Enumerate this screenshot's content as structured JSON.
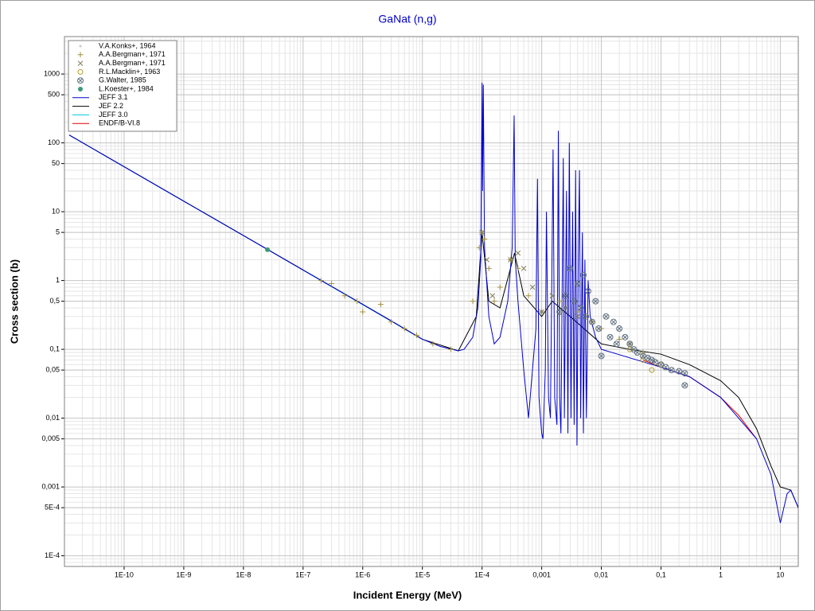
{
  "chart_data": {
    "type": "line",
    "title": "GaNat (n,g)",
    "x_label": "Incident Energy (MeV)",
    "y_label": "Cross section (b)",
    "xscale": "log",
    "yscale": "log",
    "grid": true,
    "minor_grid": true,
    "legend": "upper left",
    "xlim": [
      1e-11,
      20
    ],
    "ylim": [
      7e-05,
      3500
    ],
    "xticks": [
      {
        "value": 1e-10,
        "label": "1E-10"
      },
      {
        "value": 1e-09,
        "label": "1E-9"
      },
      {
        "value": 1e-08,
        "label": "1E-8"
      },
      {
        "value": 1e-07,
        "label": "1E-7"
      },
      {
        "value": 1e-06,
        "label": "1E-6"
      },
      {
        "value": 1e-05,
        "label": "1E-5"
      },
      {
        "value": 0.0001,
        "label": "1E-4"
      },
      {
        "value": 0.001,
        "label": "0,001"
      },
      {
        "value": 0.01,
        "label": "0,01"
      },
      {
        "value": 0.1,
        "label": "0,1"
      },
      1,
      10
    ],
    "yticks": [
      {
        "value": 0.0001,
        "label": "1E-4"
      },
      {
        "value": 0.0005,
        "label": "5E-4"
      },
      {
        "value": 0.001,
        "label": "0,001"
      },
      {
        "value": 0.005,
        "label": "0,005"
      },
      {
        "value": 0.01,
        "label": "0,01"
      },
      {
        "value": 0.05,
        "label": "0,05"
      },
      {
        "value": 0.1,
        "label": "0,1"
      },
      {
        "value": 0.5,
        "label": "0,5"
      },
      1,
      5,
      10,
      50,
      100,
      500,
      1000
    ],
    "series": [
      {
        "name": "V.A.Konks+, 1964",
        "kind": "scatter",
        "marker": "dot",
        "color": "#c8c8c8",
        "x": [
          0.02,
          0.03,
          0.05
        ],
        "values": [
          0.15,
          0.12,
          0.09
        ]
      },
      {
        "name": "A.A.Bergman+, 1971",
        "kind": "scatter",
        "marker": "plus",
        "color": "#a09040",
        "x": [
          2e-07,
          3e-07,
          5e-07,
          8e-07,
          1e-06,
          2e-06,
          3e-06,
          5e-06,
          8e-06,
          1.5e-05,
          3e-05,
          7e-05,
          9e-05,
          0.0001,
          0.00011,
          0.00013,
          0.00016,
          0.0002,
          0.0003,
          0.0004,
          0.0006,
          0.001,
          0.002,
          0.004,
          0.007,
          0.01,
          0.02,
          0.03,
          0.05
        ],
        "values": [
          1.0,
          0.9,
          0.6,
          0.5,
          0.35,
          0.45,
          0.25,
          0.2,
          0.16,
          0.12,
          0.1,
          0.5,
          3,
          5,
          4,
          1.5,
          0.5,
          0.8,
          2,
          1.5,
          0.6,
          0.35,
          0.5,
          0.35,
          0.25,
          0.2,
          0.14,
          0.12,
          0.09
        ]
      },
      {
        "name": "A.A.Bergman+, 1971",
        "kind": "scatter",
        "marker": "cross",
        "color": "#808060",
        "x": [
          0.0001,
          0.00012,
          0.00015,
          0.0003,
          0.0004,
          0.0005,
          0.0007,
          0.001,
          0.0015,
          0.0025,
          0.004
        ],
        "values": [
          5,
          2,
          0.6,
          2,
          2.5,
          1.5,
          0.8,
          0.35,
          0.6,
          0.4,
          0.3
        ]
      },
      {
        "name": "R.L.Macklin+, 1963",
        "kind": "scatter",
        "marker": "circle",
        "color": "#b0a030",
        "x": [
          0.03,
          0.05,
          0.07,
          0.1
        ],
        "values": [
          0.1,
          0.07,
          0.05,
          0.06
        ]
      },
      {
        "name": "G.Walter, 1985",
        "kind": "scatter",
        "marker": "circlex",
        "color": "#607080",
        "x": [
          0.002,
          0.0025,
          0.003,
          0.0035,
          0.004,
          0.0045,
          0.005,
          0.0055,
          0.006,
          0.007,
          0.008,
          0.009,
          0.01,
          0.012,
          0.014,
          0.016,
          0.018,
          0.02,
          0.025,
          0.03,
          0.035,
          0.04,
          0.05,
          0.06,
          0.07,
          0.08,
          0.1,
          0.12,
          0.15,
          0.2,
          0.25,
          0.25
        ],
        "values": [
          0.35,
          0.6,
          1.5,
          0.5,
          0.9,
          0.4,
          1.2,
          0.3,
          0.7,
          0.25,
          0.5,
          0.2,
          0.08,
          0.3,
          0.15,
          0.25,
          0.12,
          0.2,
          0.15,
          0.12,
          0.1,
          0.09,
          0.08,
          0.075,
          0.07,
          0.065,
          0.06,
          0.055,
          0.05,
          0.048,
          0.045,
          0.03
        ]
      },
      {
        "name": "L.Koester+, 1984",
        "kind": "scatter",
        "marker": "disc",
        "color": "#3a9a7a",
        "x": [
          2.53e-08
        ],
        "values": [
          2.8
        ]
      },
      {
        "name": "JEFF 3.1",
        "kind": "line",
        "color": "#0000cc",
        "x": [
          1.2e-11,
          1e-09,
          1e-08,
          1e-07,
          1e-06,
          3e-06,
          1e-05,
          2e-05,
          4e-05,
          5e-05,
          7e-05,
          8.5e-05,
          9.5e-05,
          0.0001,
          0.000102,
          0.000105,
          0.00011,
          0.00013,
          0.00016,
          0.0002,
          0.00027,
          0.00032,
          0.000345,
          0.00036,
          0.0004,
          0.0005,
          0.0006,
          0.0007,
          0.0008,
          0.00085,
          0.0009,
          0.001,
          0.00105,
          0.00115,
          0.0012,
          0.0013,
          0.0014,
          0.00155,
          0.00165,
          0.0018,
          0.0019,
          0.002,
          0.0021,
          0.0023,
          0.0024,
          0.0026,
          0.00275,
          0.0029,
          0.0031,
          0.0033,
          0.0035,
          0.0037,
          0.0039,
          0.0041,
          0.0043,
          0.0045,
          0.0048,
          0.005,
          0.0053,
          0.0056,
          0.006,
          0.0065,
          0.008,
          0.01,
          0.1,
          0.3,
          1,
          2,
          4,
          7,
          10,
          13,
          15,
          20
        ],
        "values": [
          130,
          14.2,
          4.5,
          1.42,
          0.45,
          0.26,
          0.14,
          0.11,
          0.095,
          0.1,
          0.15,
          0.4,
          2,
          750,
          20,
          700,
          3,
          0.3,
          0.12,
          0.15,
          0.5,
          3,
          250,
          2,
          0.5,
          0.05,
          0.01,
          0.05,
          0.2,
          30,
          0.02,
          0.006,
          0.005,
          0.05,
          10,
          0.02,
          0.01,
          80,
          0.02,
          0.008,
          150,
          0.02,
          0.006,
          60,
          0.01,
          20,
          0.006,
          100,
          0.01,
          10,
          0.008,
          40,
          0.004,
          2,
          40,
          0.01,
          5,
          0.006,
          2,
          0.01,
          1,
          0.3,
          0.15,
          0.1,
          0.055,
          0.04,
          0.02,
          0.01,
          0.005,
          0.0015,
          0.0003,
          0.0008,
          0.0009,
          0.0005
        ]
      },
      {
        "name": "JEF 2.2",
        "kind": "line",
        "color": "#000000",
        "x": [
          1.2e-11,
          1e-08,
          1e-06,
          1e-05,
          4e-05,
          8e-05,
          0.0001,
          0.00013,
          0.0002,
          0.00035,
          0.0005,
          0.001,
          0.0015,
          0.003,
          0.01,
          0.03,
          0.1,
          0.3,
          1,
          2,
          4,
          7,
          10,
          15,
          20
        ],
        "values": [
          130,
          4.5,
          0.45,
          0.14,
          0.095,
          0.3,
          5,
          0.5,
          0.4,
          2.5,
          0.6,
          0.3,
          0.5,
          0.3,
          0.12,
          0.1,
          0.085,
          0.06,
          0.035,
          0.02,
          0.007,
          0.002,
          0.001,
          0.0009,
          0.0005
        ]
      },
      {
        "name": "JEFF 3.0",
        "kind": "line",
        "color": "#00c8e0",
        "x": [
          1.2e-11,
          1e-08,
          1e-05
        ],
        "values": [
          130,
          4.5,
          0.14
        ]
      },
      {
        "name": "ENDF/B-VI.8",
        "kind": "line",
        "color": "#e00000",
        "x": [
          0.05,
          0.1,
          0.3,
          1,
          2,
          4
        ],
        "values": [
          0.07,
          0.055,
          0.04,
          0.02,
          0.011,
          0.005
        ]
      }
    ]
  }
}
